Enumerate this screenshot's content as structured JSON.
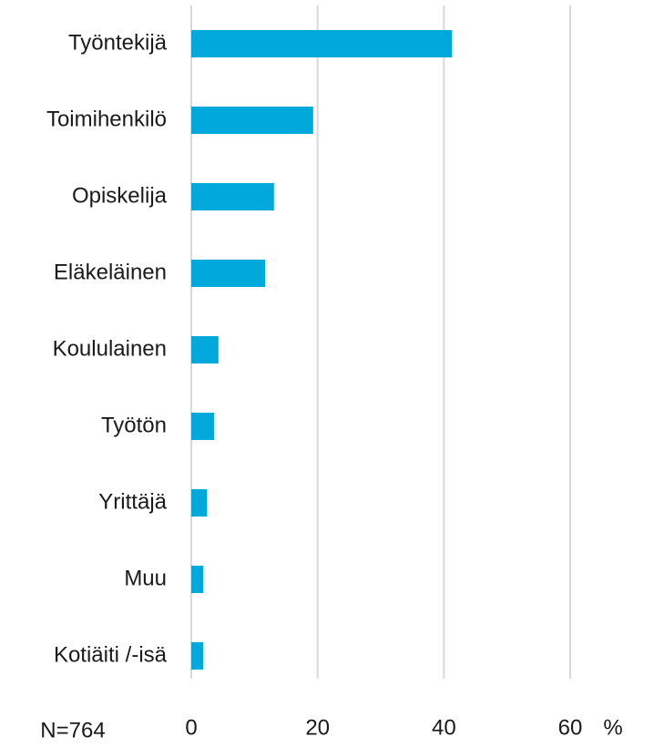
{
  "chart_data": {
    "type": "bar",
    "orientation": "horizontal",
    "categories": [
      "Työntekijä",
      "Toimihenkilö",
      "Opiskelija",
      "Eläkeläinen",
      "Koululainen",
      "Työtön",
      "Yrittäjä",
      "Muu",
      "Kotiäiti /-isä"
    ],
    "values": [
      41.3,
      19.3,
      13.1,
      11.7,
      4.3,
      3.6,
      2.5,
      1.9,
      1.9
    ],
    "color": "#00a9da",
    "xlim": [
      0,
      60
    ],
    "xticks": [
      0,
      20,
      40,
      60
    ],
    "grid": true,
    "xlabel": "%",
    "annotation": "N=764"
  }
}
